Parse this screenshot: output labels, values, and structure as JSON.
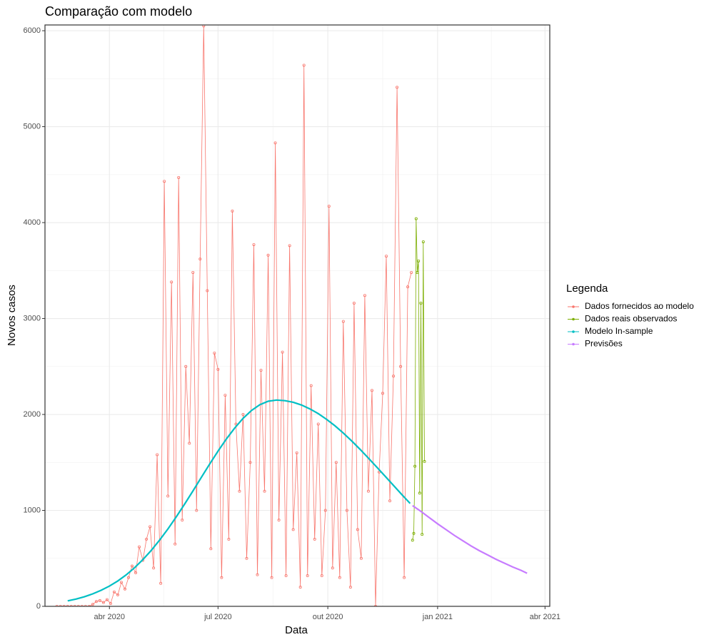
{
  "chart_data": {
    "type": "line",
    "title": "Comparação com modelo",
    "xlabel": "Data",
    "ylabel": "Novos casos",
    "legend_title": "Legenda",
    "legend": "right",
    "grid": true,
    "xlim": [
      37,
      460
    ],
    "ylim": [
      0,
      6060
    ],
    "xticks": [
      {
        "value": 91,
        "label": "abr 2020"
      },
      {
        "value": 182,
        "label": "jul 2020"
      },
      {
        "value": 274,
        "label": "out 2020"
      },
      {
        "value": 366,
        "label": "jan 2021"
      },
      {
        "value": 456,
        "label": "abr 2021"
      }
    ],
    "yticks": [
      0,
      1000,
      2000,
      3000,
      4000,
      5000,
      6000
    ],
    "series": [
      {
        "name": "Dados fornecidos ao modelo",
        "color": "#F8766D",
        "markers": true,
        "x": [
          47,
          50,
          53,
          56,
          59,
          62,
          65,
          68,
          71,
          74,
          77,
          80,
          83,
          86,
          89,
          92,
          95,
          98,
          101,
          104,
          107,
          110,
          113,
          116,
          119,
          122,
          125,
          128,
          131,
          134,
          137,
          140,
          143,
          146,
          149,
          152,
          155,
          158,
          161,
          164,
          167,
          170,
          173,
          176,
          179,
          182,
          185,
          188,
          191,
          194,
          197,
          200,
          203,
          206,
          209,
          212,
          215,
          218,
          221,
          224,
          227,
          230,
          233,
          236,
          239,
          242,
          245,
          248,
          251,
          254,
          257,
          260,
          263,
          266,
          269,
          272,
          275,
          278,
          281,
          284,
          287,
          290,
          293,
          296,
          299,
          302,
          305,
          308,
          311,
          314,
          317,
          320,
          323,
          326,
          329,
          332,
          335,
          338,
          341,
          344
        ],
        "values": [
          0,
          0,
          0,
          0,
          0,
          0,
          0,
          0,
          0,
          0,
          20,
          50,
          60,
          40,
          70,
          30,
          150,
          120,
          250,
          180,
          300,
          420,
          350,
          620,
          480,
          700,
          830,
          400,
          1580,
          240,
          4430,
          1150,
          3380,
          650,
          4470,
          900,
          2500,
          1700,
          3480,
          1000,
          3620,
          6050,
          3290,
          600,
          2640,
          2470,
          300,
          2200,
          700,
          4120,
          1900,
          1200,
          2000,
          500,
          1500,
          3770,
          330,
          2460,
          1200,
          3660,
          300,
          4830,
          900,
          2650,
          320,
          3760,
          800,
          1600,
          200,
          5640,
          320,
          2300,
          700,
          1900,
          320,
          1000,
          4170,
          400,
          1500,
          300,
          2970,
          1000,
          200,
          3160,
          800,
          500,
          3240,
          1200,
          2250,
          0,
          1400,
          2220,
          3650,
          1100,
          2400,
          5410,
          2500,
          300,
          3330,
          3480
        ]
      },
      {
        "name": "Dados reais observados",
        "color": "#7CAE00",
        "markers": true,
        "x": [
          345,
          346,
          347,
          348,
          349,
          350,
          351,
          352,
          353,
          354,
          355
        ],
        "values": [
          690,
          760,
          1460,
          4040,
          3480,
          3600,
          1180,
          3160,
          750,
          3800,
          1510
        ]
      },
      {
        "name": "Modelo In-sample",
        "color": "#00BFC4",
        "markers": false,
        "x": [
          56,
          63,
          70,
          77,
          84,
          91,
          98,
          105,
          112,
          119,
          126,
          133,
          140,
          147,
          154,
          161,
          168,
          175,
          182,
          189,
          196,
          203,
          210,
          217,
          224,
          231,
          238,
          245,
          252,
          259,
          266,
          273,
          280,
          287,
          294,
          301,
          308,
          315,
          322,
          329,
          336,
          343
        ],
        "values": [
          57,
          76,
          100,
          130,
          167,
          211,
          265,
          328,
          402,
          487,
          583,
          690,
          807,
          933,
          1066,
          1204,
          1344,
          1484,
          1618,
          1745,
          1860,
          1960,
          2041,
          2101,
          2138,
          2150,
          2144,
          2127,
          2098,
          2058,
          2009,
          1949,
          1882,
          1806,
          1724,
          1637,
          1546,
          1452,
          1357,
          1261,
          1166,
          1072
        ]
      },
      {
        "name": "Previsões",
        "color": "#C77CFF",
        "markers": false,
        "x": [
          345,
          352,
          359,
          366,
          373,
          380,
          387,
          394,
          401,
          408,
          415,
          422,
          429,
          436,
          441
        ],
        "values": [
          1050,
          990,
          925,
          860,
          800,
          740,
          685,
          630,
          580,
          535,
          490,
          450,
          410,
          375,
          345
        ]
      }
    ]
  }
}
